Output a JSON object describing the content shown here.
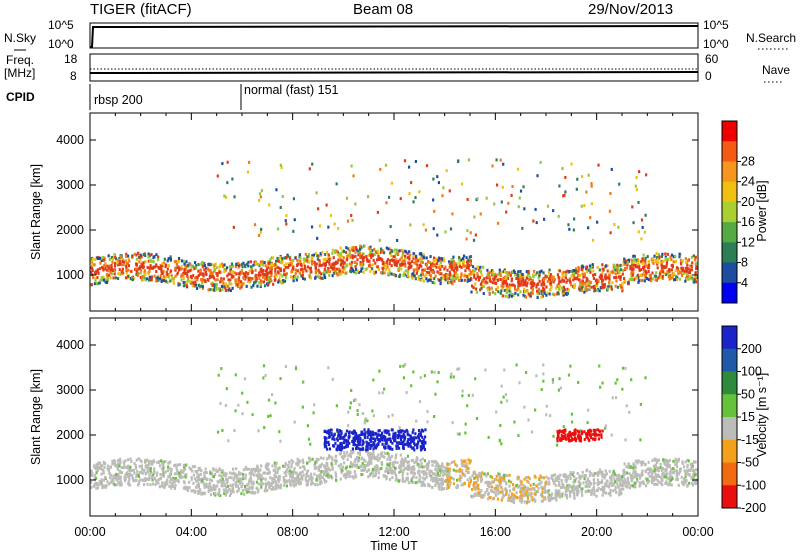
{
  "header": {
    "station": "TIGER (fitACF)",
    "beam": "Beam 08",
    "date": "29/Nov/2013"
  },
  "strips": {
    "nsky_label": "N.Sky",
    "nsky_top": "10^5",
    "nsky_bottom": "10^0",
    "nsearch_label": "N.Search",
    "nsearch_top": "10^5",
    "nsearch_bottom": "10^0",
    "freq_label": "Freq.",
    "freq_unit": "[MHz]",
    "freq_top": "18",
    "freq_bottom": "8",
    "nave_label": "Nave",
    "nave_top": "60",
    "nave_bottom": "0",
    "cpid_label": "CPID",
    "cpid_1": "rbsp 200",
    "cpid_2": "normal (fast) 151"
  },
  "chart_data": [
    {
      "type": "heatmap",
      "name": "power",
      "ylabel": "Slant Range [km]",
      "xlabel": "Time UT",
      "yticks": [
        1000,
        2000,
        3000,
        4000
      ],
      "ylim": [
        200,
        4600
      ],
      "xlim": [
        0,
        24
      ],
      "xticks": [
        "00:00",
        "04:00",
        "08:00",
        "12:00",
        "16:00",
        "20:00",
        "00:00"
      ],
      "colorbar": {
        "label": "Power [dB]",
        "ticks": [
          "4",
          "8",
          "12",
          "16",
          "20",
          "24",
          "28"
        ],
        "colors": [
          "#0000ee",
          "#1e4da0",
          "#2e7e55",
          "#55aa44",
          "#a9d030",
          "#f0c010",
          "#f7961e",
          "#f45a14",
          "#ee0000"
        ]
      }
    },
    {
      "type": "heatmap",
      "name": "velocity",
      "ylabel": "Slant Range [km]",
      "xlabel": "Time UT",
      "yticks": [
        1000,
        2000,
        3000,
        4000
      ],
      "ylim": [
        200,
        4600
      ],
      "xlim": [
        0,
        24
      ],
      "xticks": [
        "00:00",
        "04:00",
        "08:00",
        "12:00",
        "16:00",
        "20:00",
        "00:00"
      ],
      "colorbar": {
        "label": "Velocity [m s⁻¹]",
        "ticks": [
          "200",
          "100",
          "50",
          "15",
          "-15",
          "-50",
          "-100",
          "-200"
        ],
        "colors": [
          "#1a24c8",
          "#1f5aa8",
          "#2e8a3c",
          "#66c23a",
          "#bcbcb8",
          "#f3a11c",
          "#f26a12",
          "#ea0f0f"
        ]
      }
    }
  ],
  "colors": {
    "power_band": [
      "#e03a18",
      "#f07a18",
      "#f0c010",
      "#8ccc3a",
      "#2e7e55",
      "#1e4da0"
    ],
    "velocity_main": "#bcbcb8",
    "velocity_blue": "#1a24c8",
    "velocity_red": "#ea0f0f",
    "velocity_orange": "#f3a11c",
    "velocity_green": "#66c23a"
  }
}
